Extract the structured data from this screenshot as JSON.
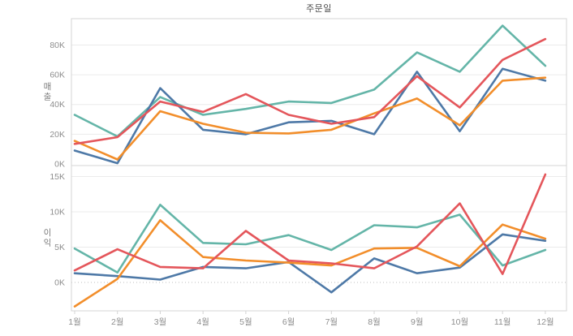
{
  "chart_data": {
    "type": "line",
    "title": "주문일",
    "unit": "K",
    "grid": true,
    "legend": "none",
    "x_categories": [
      "1월",
      "2월",
      "3월",
      "4월",
      "5월",
      "6월",
      "7월",
      "8월",
      "9월",
      "10월",
      "11월",
      "12월"
    ],
    "panels": [
      {
        "ylabel": "매출",
        "ytick_labels": [
          "0K",
          "20K",
          "40K",
          "60K",
          "80K"
        ],
        "ytick_values": [
          0,
          20,
          40,
          60,
          80
        ],
        "ylim": [
          0,
          97.5
        ],
        "zero_line_dotted": false,
        "series": [
          {
            "name": "teal",
            "color": "#64b5a8",
            "values": [
              33,
              18.5,
              45,
              33,
              37,
              42,
              41,
              50,
              75,
              62,
              93,
              66
            ]
          },
          {
            "name": "blue",
            "color": "#4e79a7",
            "values": [
              9,
              0.5,
              51,
              23,
              20,
              28,
              29,
              20,
              62,
              22,
              64,
              56
            ]
          },
          {
            "name": "orange",
            "color": "#f28e2b",
            "values": [
              15.5,
              3,
              35.5,
              27,
              21,
              20.5,
              23,
              34,
              44,
              26,
              56,
              58
            ]
          },
          {
            "name": "red",
            "color": "#e4565b",
            "values": [
              13.5,
              18,
              42,
              35,
              47,
              33,
              27,
              31.5,
              59,
              38,
              70,
              84
            ]
          }
        ]
      },
      {
        "ylabel": "이익",
        "ytick_labels": [
          "0K",
          "5K",
          "10K",
          "15K"
        ],
        "ytick_values": [
          0,
          5,
          10,
          15
        ],
        "ylim": [
          -4,
          16.5
        ],
        "zero_line_dotted": true,
        "series": [
          {
            "name": "teal",
            "color": "#64b5a8",
            "values": [
              4.8,
              1.4,
              11,
              5.6,
              5.4,
              6.7,
              4.6,
              8.1,
              7.8,
              9.6,
              2.4,
              4.6
            ]
          },
          {
            "name": "blue",
            "color": "#4e79a7",
            "values": [
              1.3,
              0.9,
              0.4,
              2.2,
              2.0,
              2.9,
              -1.4,
              3.4,
              1.3,
              2.1,
              6.8,
              5.9
            ]
          },
          {
            "name": "orange",
            "color": "#f28e2b",
            "values": [
              -3.4,
              0.5,
              8.8,
              3.6,
              3.1,
              2.8,
              2.4,
              4.8,
              4.9,
              2.3,
              8.2,
              6.2
            ]
          },
          {
            "name": "red",
            "color": "#e4565b",
            "values": [
              1.7,
              4.7,
              2.2,
              2.0,
              7.3,
              3.1,
              2.7,
              2.0,
              5.1,
              11.2,
              1.2,
              15.3
            ]
          }
        ]
      }
    ],
    "colors": {
      "border": "#d4d4d4",
      "grid": "#ebebeb",
      "tick_text": "#8e8e8e",
      "title_text": "#4b4b4b",
      "axis_title_text": "#7a7a7a",
      "zero_line": "#bcbcbc"
    }
  }
}
